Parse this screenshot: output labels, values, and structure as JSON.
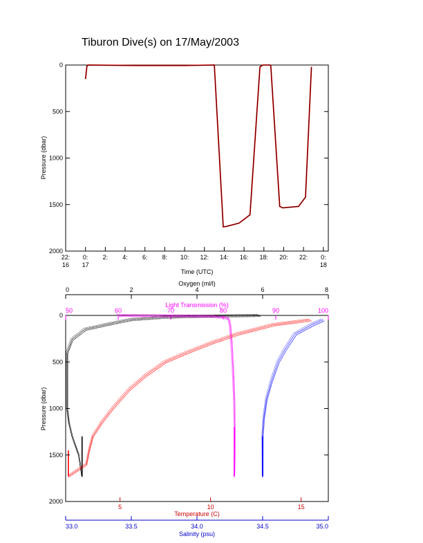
{
  "title": "Tiburon Dive(s) on 17/May/2003",
  "chart_data": [
    {
      "type": "line",
      "xlabel": "Time (UTC)",
      "ylabel": "Pressure (dbar)",
      "ylim": [
        2000,
        0
      ],
      "xlim": [
        -2,
        24.5
      ],
      "xticks": [
        {
          "v": -2,
          "l1": "22:",
          "l2": "16"
        },
        {
          "v": 0,
          "l1": "0:",
          "l2": "17"
        },
        {
          "v": 2,
          "l1": "2:",
          "l2": ""
        },
        {
          "v": 4,
          "l1": "4:",
          "l2": ""
        },
        {
          "v": 6,
          "l1": "6:",
          "l2": ""
        },
        {
          "v": 8,
          "l1": "8:",
          "l2": ""
        },
        {
          "v": 10,
          "l1": "10:",
          "l2": ""
        },
        {
          "v": 12,
          "l1": "12:",
          "l2": ""
        },
        {
          "v": 14,
          "l1": "14:",
          "l2": ""
        },
        {
          "v": 16,
          "l1": "16:",
          "l2": ""
        },
        {
          "v": 18,
          "l1": "18:",
          "l2": ""
        },
        {
          "v": 20,
          "l1": "20:",
          "l2": ""
        },
        {
          "v": 22,
          "l1": "22:",
          "l2": ""
        },
        {
          "v": 24,
          "l1": "0:",
          "l2": "18"
        }
      ],
      "yticks": [
        0,
        500,
        1000,
        1500,
        2000
      ],
      "series": [
        {
          "color": "#ff0000",
          "x": [
            0,
            0.15,
            0.3,
            5,
            10,
            13,
            13.9,
            14.2,
            15.5,
            16.6,
            17.6,
            17.9,
            18.6,
            18.7,
            19.6,
            19.9,
            21.5,
            22.2,
            22.8
          ],
          "y": [
            150,
            10,
            0,
            5,
            5,
            0,
            1740,
            1735,
            1700,
            1610,
            20,
            0,
            0,
            10,
            1520,
            1535,
            1520,
            1420,
            20
          ]
        },
        {
          "color": "#000000",
          "x": [
            0,
            0.15,
            0.3,
            5,
            10,
            13,
            13.9,
            14.2,
            15.5,
            16.6,
            17.6,
            17.9,
            18.6,
            18.7,
            19.6,
            19.9,
            21.5,
            22.2,
            22.8
          ],
          "y": [
            150,
            10,
            0,
            5,
            5,
            0,
            1740,
            1735,
            1700,
            1610,
            20,
            0,
            0,
            10,
            1520,
            1535,
            1520,
            1420,
            20
          ]
        }
      ]
    },
    {
      "type": "line",
      "ylabel": "Pressure (dbar)",
      "ylim": [
        2000,
        0
      ],
      "yticks": [
        0,
        500,
        1000,
        1500,
        2000
      ],
      "axes": [
        {
          "label": "Oxygen (ml/l)",
          "color": "#000000",
          "range": [
            0,
            8
          ],
          "ticks": [
            0,
            2,
            4,
            6,
            8
          ],
          "position": "top"
        },
        {
          "label": "Light Transmission (%)",
          "color": "#ff00ff",
          "range": [
            50,
            100
          ],
          "ticks": [
            50,
            60,
            70,
            80,
            90,
            100
          ],
          "position": "top-inner"
        },
        {
          "label": "Temperature (C)",
          "color": "#cc0000",
          "range": [
            2,
            16.5
          ],
          "ticks": [
            5,
            10,
            15
          ],
          "position": "bottom"
        },
        {
          "label": "Salinity (psu)",
          "color": "#0000cc",
          "range": [
            33.0,
            35.0
          ],
          "ticks": [
            "33.0",
            "33.5",
            "34.0",
            "34.5",
            "35.0"
          ],
          "position": "bottom-outer"
        }
      ],
      "series": [
        {
          "name": "Oxygen",
          "color": "#000000",
          "x": [
            5.9,
            5.0,
            4.0,
            3.0,
            2.0,
            1.5,
            0.6,
            0.2,
            0.05,
            0.05,
            0.1,
            0.2,
            0.4,
            0.5
          ],
          "y": [
            0,
            5,
            10,
            20,
            45,
            80,
            150,
            260,
            400,
            1000,
            1150,
            1300,
            1500,
            1730
          ]
        },
        {
          "name": "Light Transmission",
          "color": "#ff00ff",
          "x": [
            60,
            70,
            78,
            81,
            81.3,
            81.6,
            81.9,
            82.1,
            82.2,
            82.2,
            82.1
          ],
          "y": [
            0,
            5,
            10,
            30,
            100,
            300,
            600,
            900,
            1200,
            1500,
            1730
          ]
        },
        {
          "name": "Temperature",
          "color": "#ff0000",
          "x": [
            15.5,
            13.5,
            11.5,
            10.0,
            8.7,
            7.5,
            6.4,
            5.5,
            4.6,
            4.0,
            3.5,
            3.3,
            3.15,
            2.15
          ],
          "y": [
            50,
            100,
            200,
            300,
            400,
            500,
            650,
            800,
            1000,
            1150,
            1300,
            1450,
            1600,
            1730
          ]
        },
        {
          "name": "Salinity",
          "color": "#0000ff",
          "x": [
            34.96,
            34.88,
            34.75,
            34.68,
            34.62,
            34.57,
            34.53,
            34.51,
            34.5,
            34.5,
            34.5
          ],
          "y": [
            50,
            100,
            200,
            350,
            500,
            700,
            900,
            1100,
            1300,
            1500,
            1730
          ]
        }
      ]
    }
  ]
}
